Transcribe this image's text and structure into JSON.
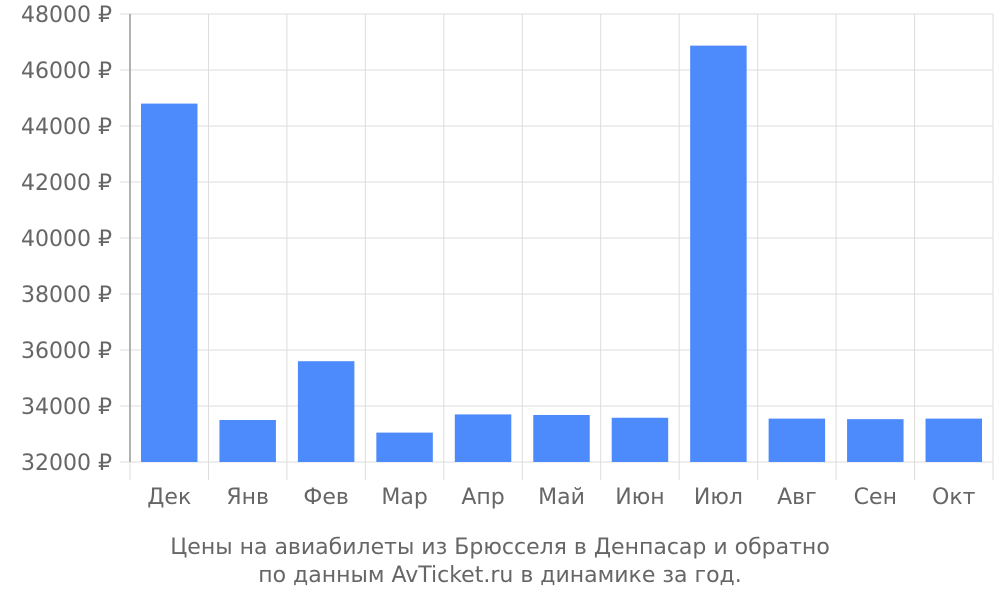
{
  "colors": {
    "bar": "#4d8afb",
    "grid": "#dddddd",
    "axis": "#999999",
    "text": "#666666"
  },
  "caption": {
    "line1": "Цены на авиабилеты из Брюсселя в Денпасар и обратно",
    "line2": "по данным AvTicket.ru в динамике за год."
  },
  "chart_data": {
    "type": "bar",
    "title": "",
    "xlabel": "",
    "ylabel": "",
    "categories": [
      "Дек",
      "Янв",
      "Фев",
      "Мар",
      "Апр",
      "Май",
      "Июн",
      "Июл",
      "Авг",
      "Сен",
      "Окт"
    ],
    "values": [
      44800,
      33500,
      35600,
      33050,
      33700,
      33680,
      33580,
      46870,
      33550,
      33530,
      33550
    ],
    "ylim": [
      32000,
      48000
    ],
    "yticks": [
      32000,
      34000,
      36000,
      38000,
      40000,
      42000,
      44000,
      46000,
      48000
    ],
    "ytick_labels": [
      "32000 ₽",
      "34000 ₽",
      "36000 ₽",
      "38000 ₽",
      "40000 ₽",
      "42000 ₽",
      "44000 ₽",
      "46000 ₽",
      "48000 ₽"
    ],
    "grid": true,
    "legend": "none"
  }
}
